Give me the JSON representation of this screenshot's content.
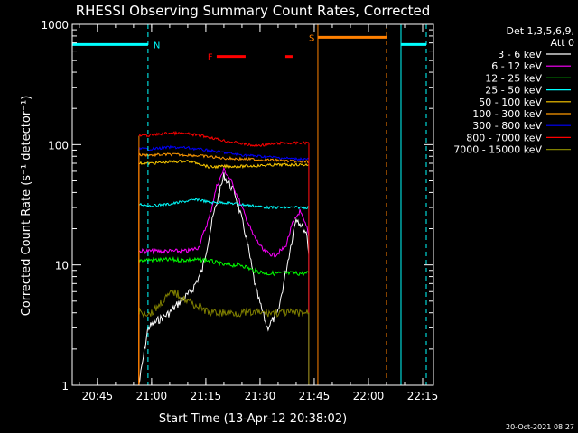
{
  "chart_data": {
    "type": "line",
    "title": "RHESSI Observing Summary Count Rates, Corrected",
    "xlabel": "Start Time (13-Apr-12 20:38:02)",
    "ylabel": "Corrected Count Rate (s⁻¹ detector⁻¹)",
    "yscale": "log",
    "ylim": [
      1,
      1000
    ],
    "xlim": [
      "20:38:02",
      "22:18:00"
    ],
    "x_ticks": [
      "20:45",
      "21:00",
      "21:15",
      "21:30",
      "21:45",
      "22:00",
      "22:15"
    ],
    "y_ticks": [
      "1",
      "10",
      "100",
      "1000"
    ],
    "legend_title": [
      "Det 1,3,5,6,9,",
      "Att 0"
    ],
    "legend_position": "right",
    "footer": "20-Oct-2021 08:27",
    "series": [
      {
        "name": "3 - 6 keV",
        "color": "#ffffff",
        "points": [
          [
            "20:56:30",
            1.0
          ],
          [
            "20:59",
            3
          ],
          [
            "21:02",
            3.5
          ],
          [
            "21:05",
            4
          ],
          [
            "21:08",
            5
          ],
          [
            "21:11",
            6
          ],
          [
            "21:14",
            9
          ],
          [
            "21:17",
            25
          ],
          [
            "21:20",
            55
          ],
          [
            "21:23",
            40
          ],
          [
            "21:26",
            18
          ],
          [
            "21:29",
            6
          ],
          [
            "21:32",
            3
          ],
          [
            "21:35",
            4
          ],
          [
            "21:38",
            12
          ],
          [
            "21:40",
            25
          ],
          [
            "21:43",
            18
          ],
          [
            "21:43:30",
            12
          ]
        ]
      },
      {
        "name": "6 - 12 keV",
        "color": "#ff00ff",
        "points": [
          [
            "20:56:30",
            13
          ],
          [
            "21:00",
            13
          ],
          [
            "21:05",
            13
          ],
          [
            "21:10",
            13
          ],
          [
            "21:13",
            14
          ],
          [
            "21:16",
            25
          ],
          [
            "21:18",
            45
          ],
          [
            "21:20",
            62
          ],
          [
            "21:22",
            50
          ],
          [
            "21:25",
            30
          ],
          [
            "21:28",
            18
          ],
          [
            "21:31",
            13
          ],
          [
            "21:34",
            12
          ],
          [
            "21:37",
            14
          ],
          [
            "21:39",
            22
          ],
          [
            "21:41",
            28
          ],
          [
            "21:43",
            20
          ],
          [
            "21:43:30",
            17
          ]
        ]
      },
      {
        "name": "12 - 25 keV",
        "color": "#00ff00",
        "points": [
          [
            "20:56:30",
            11
          ],
          [
            "21:00",
            11
          ],
          [
            "21:05",
            11
          ],
          [
            "21:10",
            11
          ],
          [
            "21:15",
            11
          ],
          [
            "21:20",
            10
          ],
          [
            "21:25",
            10
          ],
          [
            "21:28",
            9
          ],
          [
            "21:32",
            8.5
          ],
          [
            "21:36",
            8.5
          ],
          [
            "21:40",
            8.5
          ],
          [
            "21:43:30",
            8.5
          ]
        ]
      },
      {
        "name": "25 - 50 keV",
        "color": "#00ffff",
        "points": [
          [
            "20:56:30",
            32
          ],
          [
            "21:00",
            31
          ],
          [
            "21:05",
            32
          ],
          [
            "21:10",
            34
          ],
          [
            "21:13",
            35
          ],
          [
            "21:16",
            33
          ],
          [
            "21:20",
            33
          ],
          [
            "21:24",
            32
          ],
          [
            "21:28",
            31
          ],
          [
            "21:32",
            30
          ],
          [
            "21:36",
            30
          ],
          [
            "21:40",
            30
          ],
          [
            "21:43:30",
            30
          ]
        ]
      },
      {
        "name": "50 - 100 keV",
        "color": "#ffcc00",
        "points": [
          [
            "20:56:30",
            70
          ],
          [
            "21:00",
            70
          ],
          [
            "21:05",
            72
          ],
          [
            "21:10",
            73
          ],
          [
            "21:13",
            70
          ],
          [
            "21:16",
            65
          ],
          [
            "21:20",
            66
          ],
          [
            "21:25",
            66
          ],
          [
            "21:30",
            67
          ],
          [
            "21:35",
            68
          ],
          [
            "21:40",
            68
          ],
          [
            "21:43:30",
            68
          ]
        ]
      },
      {
        "name": "100 - 300 keV",
        "color": "#ff9900",
        "points": [
          [
            "20:56:30",
            82
          ],
          [
            "21:00",
            82
          ],
          [
            "21:05",
            83
          ],
          [
            "21:10",
            82
          ],
          [
            "21:15",
            80
          ],
          [
            "21:20",
            77
          ],
          [
            "21:25",
            76
          ],
          [
            "21:30",
            75
          ],
          [
            "21:35",
            74
          ],
          [
            "21:40",
            72
          ],
          [
            "21:43:30",
            72
          ]
        ]
      },
      {
        "name": "300 - 800 keV",
        "color": "#0000ff",
        "points": [
          [
            "20:56:30",
            92
          ],
          [
            "21:00",
            92
          ],
          [
            "21:05",
            95
          ],
          [
            "21:10",
            94
          ],
          [
            "21:15",
            90
          ],
          [
            "21:20",
            86
          ],
          [
            "21:25",
            82
          ],
          [
            "21:30",
            80
          ],
          [
            "21:35",
            78
          ],
          [
            "21:40",
            76
          ],
          [
            "21:43:30",
            76
          ]
        ]
      },
      {
        "name": "800 - 7000 keV",
        "color": "#ff0000",
        "points": [
          [
            "20:56:30",
            118
          ],
          [
            "21:00",
            120
          ],
          [
            "21:05",
            125
          ],
          [
            "21:10",
            123
          ],
          [
            "21:15",
            117
          ],
          [
            "21:20",
            108
          ],
          [
            "21:25",
            102
          ],
          [
            "21:28",
            98
          ],
          [
            "21:32",
            100
          ],
          [
            "21:36",
            103
          ],
          [
            "21:40",
            103
          ],
          [
            "21:43:30",
            104
          ]
        ]
      },
      {
        "name": "7000 - 15000 keV",
        "color": "#808000",
        "points": [
          [
            "20:56:30",
            4
          ],
          [
            "21:00",
            4
          ],
          [
            "21:03",
            5
          ],
          [
            "21:06",
            6
          ],
          [
            "21:10",
            5
          ],
          [
            "21:13",
            4.5
          ],
          [
            "21:16",
            4
          ],
          [
            "21:20",
            4
          ],
          [
            "21:25",
            4
          ],
          [
            "21:30",
            4
          ],
          [
            "21:35",
            4
          ],
          [
            "21:40",
            4
          ],
          [
            "21:43:30",
            4
          ]
        ]
      }
    ],
    "flags": [
      {
        "label": "N",
        "color": "#00ffff",
        "segments": [
          [
            "20:38:02",
            "20:59:00"
          ],
          [
            "22:09:00",
            "22:16:00"
          ]
        ],
        "level": 680
      },
      {
        "label": "F",
        "color": "#ff0000",
        "segments": [
          [
            "21:18:00",
            "21:26:00"
          ],
          [
            "21:37:00",
            "21:39:00"
          ]
        ],
        "level": 540
      },
      {
        "label": "S",
        "color": "#ff8000",
        "segments": [
          [
            "21:46:00",
            "22:05:00"
          ]
        ],
        "level": 780
      }
    ],
    "orbit_markers": [
      {
        "time": "20:38:02",
        "style": "solid",
        "color": "#00ffff"
      },
      {
        "time": "20:59:00",
        "style": "dashed",
        "color": "#00ffff"
      },
      {
        "time": "21:46:00",
        "style": "solid",
        "color": "#ff8000"
      },
      {
        "time": "22:05:00",
        "style": "dashed",
        "color": "#ff8000"
      },
      {
        "time": "22:09:00",
        "style": "solid",
        "color": "#00ffff"
      },
      {
        "time": "22:16:00",
        "style": "dashed",
        "color": "#00ffff"
      }
    ]
  }
}
